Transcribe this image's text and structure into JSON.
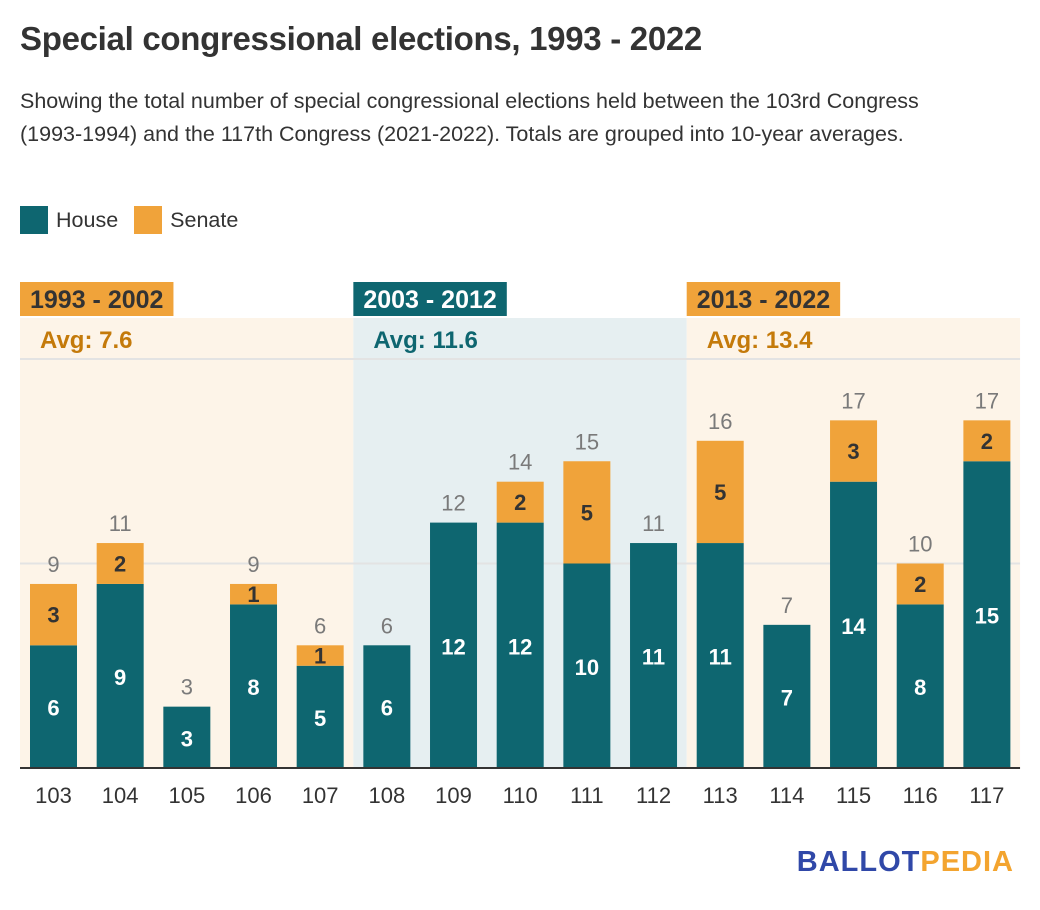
{
  "title": "Special congressional elections, 1993 - 2022",
  "subtitle": "Showing the total number of special congressional elections held between the 103rd Congress (1993-1994) and the 117th Congress (2021-2022). Totals are grouped into 10-year averages.",
  "legend": [
    {
      "label": "House",
      "color": "#0e6670"
    },
    {
      "label": "Senate",
      "color": "#f0a33a"
    }
  ],
  "logo": {
    "part1": "BALLOT",
    "part2": "PEDIA",
    "color1": "#3048a8",
    "color2": "#f3a42f"
  },
  "chart_data": {
    "type": "bar",
    "stacked": true,
    "title": "Special congressional elections, 1993 - 2022",
    "xlabel": "",
    "ylabel": "",
    "ylim": [
      0,
      20
    ],
    "gridlines": [
      10,
      20
    ],
    "categories": [
      "103",
      "104",
      "105",
      "106",
      "107",
      "108",
      "109",
      "110",
      "111",
      "112",
      "113",
      "114",
      "115",
      "116",
      "117"
    ],
    "series": [
      {
        "name": "House",
        "color": "#0e6670",
        "values": [
          6,
          9,
          3,
          8,
          5,
          6,
          12,
          12,
          10,
          11,
          11,
          7,
          14,
          8,
          15
        ]
      },
      {
        "name": "Senate",
        "color": "#f0a33a",
        "values": [
          3,
          2,
          0,
          1,
          1,
          0,
          0,
          2,
          5,
          0,
          5,
          0,
          3,
          2,
          2
        ]
      }
    ],
    "totals": [
      9,
      11,
      3,
      9,
      6,
      6,
      12,
      14,
      15,
      11,
      16,
      7,
      17,
      10,
      17
    ],
    "periods": [
      {
        "label": "1993 - 2002",
        "avg_label": "Avg: 7.6",
        "average": 7.6,
        "start_index": 0,
        "end_index": 4,
        "header_bg": "#f0a33a",
        "header_fg": "#333333",
        "panel_bg": "#fdf4e8",
        "avg_color": "#c47a0a"
      },
      {
        "label": "2003 - 2012",
        "avg_label": "Avg: 11.6",
        "average": 11.6,
        "start_index": 5,
        "end_index": 9,
        "header_bg": "#0e6670",
        "header_fg": "#ffffff",
        "panel_bg": "#e6eff1",
        "avg_color": "#0e6670"
      },
      {
        "label": "2013 - 2022",
        "avg_label": "Avg: 13.4",
        "average": 13.4,
        "start_index": 10,
        "end_index": 14,
        "header_bg": "#f0a33a",
        "header_fg": "#333333",
        "panel_bg": "#fdf4e8",
        "avg_color": "#c47a0a"
      }
    ]
  }
}
